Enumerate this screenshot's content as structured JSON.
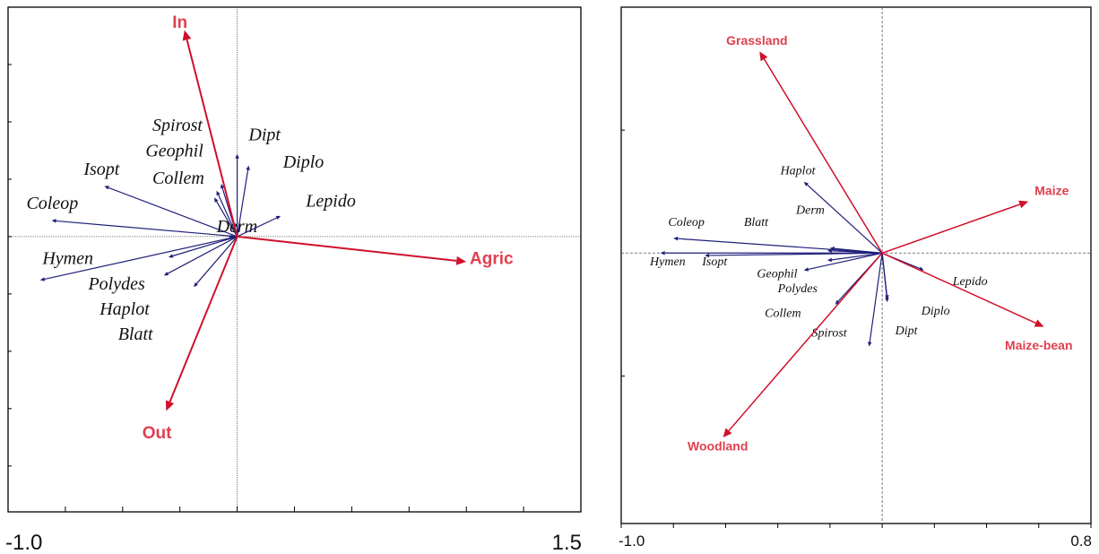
{
  "colors": {
    "species": "#1f1f7a",
    "env": "#d0102a",
    "env_text": "#e04050",
    "frame": "#000000",
    "origin": "#555555"
  },
  "chart_data": [
    {
      "type": "biplot",
      "xlim": [
        -1.0,
        1.5
      ],
      "ylim": [
        -1.2,
        1.0
      ],
      "x_tick_labels": [
        "-1.0",
        "1.5"
      ],
      "x_ticks": [
        -1.0,
        -0.75,
        -0.5,
        -0.25,
        0,
        0.25,
        0.5,
        0.75,
        1.0,
        1.25,
        1.5
      ],
      "y_ticks": [
        -1.0,
        -0.75,
        -0.5,
        -0.25,
        0,
        0.25,
        0.5,
        0.75
      ],
      "grid": false,
      "legend": "none",
      "env_vectors": [
        {
          "label": "In",
          "x": -0.23,
          "y": 0.9,
          "lx": -0.25,
          "ly": 0.93
        },
        {
          "label": "Out",
          "x": -0.31,
          "y": -0.76,
          "lx": -0.35,
          "ly": -0.86
        },
        {
          "label": "Agric",
          "x": 1.0,
          "y": -0.11,
          "lx": 1.11,
          "ly": -0.1
        }
      ],
      "species_vectors": [
        {
          "label": "Spirost",
          "x": -0.07,
          "y": 0.23,
          "lx": -0.37,
          "ly": 0.46
        },
        {
          "label": "Geophil",
          "x": -0.09,
          "y": 0.2,
          "lx": -0.4,
          "ly": 0.35
        },
        {
          "label": "Collem",
          "x": -0.1,
          "y": 0.17,
          "lx": -0.37,
          "ly": 0.23
        },
        {
          "label": "Isopt",
          "x": -0.58,
          "y": 0.22,
          "lx": -0.67,
          "ly": 0.27
        },
        {
          "label": "Coleop",
          "x": -0.81,
          "y": 0.07,
          "lx": -0.92,
          "ly": 0.12
        },
        {
          "label": "Derm",
          "x": -0.04,
          "y": 0.0,
          "lx": -0.09,
          "ly": 0.02
        },
        {
          "label": "Dipt",
          "x": 0.0,
          "y": 0.36,
          "lx": 0.05,
          "ly": 0.42
        },
        {
          "label": "Diplo",
          "x": 0.05,
          "y": 0.31,
          "lx": 0.2,
          "ly": 0.3
        },
        {
          "label": "Lepido",
          "x": 0.19,
          "y": 0.09,
          "lx": 0.3,
          "ly": 0.13
        },
        {
          "label": "Hymen",
          "x": -0.86,
          "y": -0.19,
          "lx": -0.85,
          "ly": -0.12
        },
        {
          "label": "Polydes",
          "x": -0.3,
          "y": -0.09,
          "lx": -0.65,
          "ly": -0.23
        },
        {
          "label": "Haplot",
          "x": -0.32,
          "y": -0.17,
          "lx": -0.6,
          "ly": -0.34
        },
        {
          "label": "Blatt",
          "x": -0.19,
          "y": -0.22,
          "lx": -0.52,
          "ly": -0.45
        }
      ]
    },
    {
      "type": "biplot",
      "xlim": [
        -1.0,
        0.8
      ],
      "ylim": [
        -1.1,
        1.0
      ],
      "x_tick_labels": [
        "-1.0",
        "0.8"
      ],
      "x_ticks": [
        -1.0,
        -0.8,
        -0.6,
        -0.4,
        -0.2,
        0,
        0.2,
        0.4,
        0.6,
        0.8
      ],
      "y_ticks": [
        -0.5,
        0.5
      ],
      "grid": false,
      "legend": "none",
      "env_vectors": [
        {
          "label": "Grassland",
          "x": -0.47,
          "y": 0.82,
          "lx": -0.48,
          "ly": 0.86
        },
        {
          "label": "Maize",
          "x": 0.56,
          "y": 0.21,
          "lx": 0.65,
          "ly": 0.25
        },
        {
          "label": "Maize-bean",
          "x": 0.62,
          "y": -0.3,
          "lx": 0.6,
          "ly": -0.38
        },
        {
          "label": "Woodland",
          "x": -0.61,
          "y": -0.75,
          "lx": -0.63,
          "ly": -0.79
        }
      ],
      "species_vectors": [
        {
          "label": "Haplot",
          "x": -0.3,
          "y": 0.29,
          "lx": -0.39,
          "ly": 0.32
        },
        {
          "label": "Derm",
          "x": -0.2,
          "y": 0.02,
          "lx": -0.33,
          "ly": 0.16
        },
        {
          "label": "Blatt",
          "x": -0.21,
          "y": 0.01,
          "lx": -0.53,
          "ly": 0.11
        },
        {
          "label": "Coleop",
          "x": -0.8,
          "y": 0.06,
          "lx": -0.82,
          "ly": 0.11
        },
        {
          "label": "Hymen",
          "x": -0.85,
          "y": 0.0,
          "lx": -0.89,
          "ly": -0.05
        },
        {
          "label": "Isopt",
          "x": -0.68,
          "y": -0.01,
          "lx": -0.69,
          "ly": -0.05
        },
        {
          "label": "Geophil",
          "x": -0.21,
          "y": -0.03,
          "lx": -0.48,
          "ly": -0.1
        },
        {
          "label": "Polydes",
          "x": -0.3,
          "y": -0.07,
          "lx": -0.4,
          "ly": -0.16
        },
        {
          "label": "Collem",
          "x": -0.18,
          "y": -0.21,
          "lx": -0.45,
          "ly": -0.26
        },
        {
          "label": "Spirost",
          "x": -0.05,
          "y": -0.38,
          "lx": -0.27,
          "ly": -0.34
        },
        {
          "label": "Dipt",
          "x": 0.02,
          "y": -0.2,
          "lx": 0.05,
          "ly": -0.33
        },
        {
          "label": "Diplo",
          "x": 0.02,
          "y": -0.19,
          "lx": 0.15,
          "ly": -0.25
        },
        {
          "label": "Lepido",
          "x": 0.16,
          "y": -0.07,
          "lx": 0.27,
          "ly": -0.13
        }
      ]
    }
  ]
}
